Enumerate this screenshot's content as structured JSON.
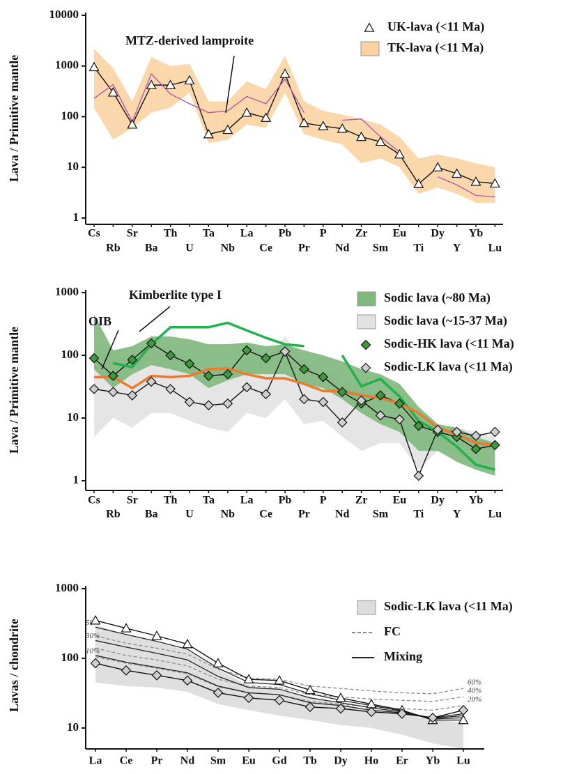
{
  "chart_data": [
    {
      "type": "line",
      "log_y": true,
      "y_label": "Lava / Primitive mantle",
      "categories": [
        "Cs",
        "Rb",
        "Sr",
        "Ba",
        "Th",
        "U",
        "Ta",
        "Nb",
        "La",
        "Ce",
        "Pb",
        "Pr",
        "P",
        "Nd",
        "Zr",
        "Sm",
        "Eu",
        "Ti",
        "Dy",
        "Y",
        "Yb",
        "Lu"
      ],
      "ylim": [
        0.75,
        10000
      ],
      "yticks": [
        1,
        10,
        100,
        1000,
        10000
      ],
      "series": [
        {
          "name": "UK-lava (<11 Ma)",
          "kind": "line",
          "marker": "triangle",
          "color": "#111",
          "marker_color": "#ffffff",
          "values": [
            950,
            300,
            70,
            420,
            420,
            520,
            45,
            55,
            120,
            95,
            700,
            75,
            65,
            58,
            40,
            32,
            18,
            4.7,
            10,
            7.5,
            5.2,
            4.8
          ]
        },
        {
          "name": "TK-lava (<11 Ma)",
          "kind": "band",
          "color": "#fbd3a3",
          "upper": [
            2200,
            900,
            200,
            1500,
            1000,
            1100,
            200,
            200,
            500,
            350,
            1600,
            200,
            130,
            110,
            90,
            70,
            40,
            15,
            18,
            15,
            12,
            10
          ],
          "lower": [
            150,
            35,
            60,
            120,
            150,
            300,
            30,
            35,
            70,
            60,
            300,
            45,
            35,
            28,
            12,
            15,
            10,
            3,
            4,
            3,
            2,
            2
          ]
        },
        {
          "name": "MTZ-derived lamproite",
          "kind": "line",
          "color": "#b05aa8",
          "legend": false,
          "values": [
            230,
            430,
            80,
            700,
            280,
            180,
            120,
            130,
            250,
            180,
            550,
            120,
            null,
            85,
            90,
            40,
            20,
            null,
            6.5,
            4.5,
            2.8,
            2.6
          ]
        }
      ]
    },
    {
      "type": "line",
      "log_y": true,
      "y_label": "Lava / Primitive mantle",
      "categories": [
        "Cs",
        "Rb",
        "Sr",
        "Ba",
        "Th",
        "U",
        "Ta",
        "Nb",
        "La",
        "Ce",
        "Pb",
        "Pr",
        "P",
        "Nd",
        "Zr",
        "Sm",
        "Eu",
        "Ti",
        "Dy",
        "Y",
        "Yb",
        "Lu"
      ],
      "ylim": [
        0.7,
        1000
      ],
      "yticks": [
        1,
        10,
        100,
        1000
      ],
      "series": [
        {
          "name": "Sodic lava (~80 Ma)",
          "kind": "band",
          "color": "#7fb77c",
          "upper": [
            450,
            120,
            140,
            200,
            200,
            180,
            150,
            150,
            160,
            140,
            150,
            120,
            100,
            80,
            60,
            50,
            35,
            15,
            8,
            7,
            5,
            4
          ],
          "lower": [
            60,
            30,
            50,
            70,
            60,
            50,
            30,
            40,
            50,
            50,
            50,
            35,
            30,
            20,
            12,
            8,
            6,
            3,
            3,
            2,
            1.5,
            1.2
          ]
        },
        {
          "name": "Sodic lava (~15-37 Ma)",
          "kind": "band",
          "color": "#e2e2e2",
          "upper": [
            120,
            100,
            90,
            120,
            110,
            100,
            60,
            60,
            90,
            80,
            200,
            80,
            60,
            40,
            30,
            25,
            20,
            10,
            7,
            7,
            6,
            5
          ],
          "lower": [
            5,
            10,
            7,
            12,
            12,
            9,
            7,
            6,
            12,
            10,
            20,
            8,
            9,
            5,
            3,
            4,
            4,
            1.5,
            3,
            3,
            3,
            3
          ]
        },
        {
          "name": "Sodic-HK lava (<11 Ma)",
          "kind": "line",
          "marker": "diamond",
          "color": "#111",
          "marker_color": "#3f9a3c",
          "values": [
            90,
            47,
            85,
            155,
            100,
            73,
            47,
            50,
            120,
            90,
            115,
            60,
            45,
            26,
            17,
            23,
            17,
            7.5,
            6,
            5,
            3.2,
            3.7
          ]
        },
        {
          "name": "Sodic-LK lava (<11 Ma)",
          "kind": "line",
          "marker": "diamond",
          "color": "#111",
          "marker_color": "#cfcfcf",
          "values": [
            29,
            26,
            23,
            38,
            29,
            18,
            16,
            17,
            31,
            24,
            115,
            20,
            18,
            8.5,
            19,
            11,
            9.5,
            1.2,
            6.5,
            6,
            5.2,
            6
          ]
        },
        {
          "name": "Kimberlite type I",
          "kind": "line",
          "color": "#22b14c",
          "legend": false,
          "width": 3.5,
          "values": [
            null,
            75,
            65,
            150,
            280,
            280,
            280,
            330,
            250,
            190,
            150,
            140,
            null,
            100,
            32,
            42,
            22,
            9,
            6,
            3.5,
            1.8,
            1.5
          ]
        },
        {
          "name": "OIB",
          "kind": "line",
          "color": "#ec7a2e",
          "legend": false,
          "width": 3.5,
          "values": [
            45,
            45,
            30,
            47,
            45,
            47,
            60,
            62,
            50,
            43,
            43,
            35,
            27,
            27,
            23,
            21,
            17,
            12,
            7,
            5.5,
            4,
            3.7
          ]
        }
      ]
    },
    {
      "type": "line",
      "log_y": true,
      "y_label": "Lavas / chondrite",
      "categories": [
        "La",
        "Ce",
        "Pr",
        "Nd",
        "Sm",
        "Eu",
        "Gd",
        "Tb",
        "Dy",
        "Ho",
        "Er",
        "Yb",
        "Lu"
      ],
      "ylim": [
        5,
        1000
      ],
      "yticks": [
        10,
        100,
        1000
      ],
      "series": [
        {
          "name": "Sodic-LK lava (<11 Ma)",
          "kind": "band",
          "color": "#dcdcdc",
          "upper": [
            300,
            220,
            170,
            130,
            70,
            40,
            35,
            28,
            22,
            18,
            16,
            13,
            12
          ],
          "lower": [
            45,
            40,
            38,
            33,
            22,
            18,
            15,
            13,
            11,
            10,
            8,
            6,
            5
          ]
        },
        {
          "name": "FC",
          "kind": "lines",
          "color": "#8a8a8a",
          "dash": true,
          "label_side": "right",
          "lines": [
            {
              "label": "60%",
              "values": [
                210,
                165,
                140,
                115,
                70,
                52,
                50,
                40,
                37,
                34,
                32,
                31,
                37
              ]
            },
            {
              "label": "40%",
              "values": [
                140,
                110,
                95,
                78,
                50,
                40,
                38,
                30,
                28,
                26,
                25,
                24,
                28
              ]
            },
            {
              "label": "20%",
              "values": [
                105,
                85,
                72,
                60,
                39,
                32,
                30,
                24,
                22,
                20,
                19,
                18,
                21
              ]
            }
          ]
        },
        {
          "name": "Mixing",
          "kind": "lines",
          "color": "#222",
          "label_side": "left",
          "lines": [
            {
              "label": "50%",
              "values": [
                280,
                220,
                175,
                135,
                72,
                45,
                42,
                31,
                25,
                21,
                17.5,
                13.5,
                14
              ]
            },
            {
              "label": "30%",
              "values": [
                180,
                145,
                118,
                95,
                55,
                38,
                36,
                27,
                23,
                19.5,
                17,
                13.8,
                15
              ]
            },
            {
              "label": "10%",
              "values": [
                110,
                88,
                74,
                62,
                40,
                32,
                30,
                23,
                21,
                18,
                16.5,
                14,
                16
              ]
            }
          ]
        },
        {
          "kind": "line",
          "marker": "triangle",
          "color": "#111",
          "marker_color": "#ffffff",
          "legend": false,
          "values": [
            350,
            270,
            210,
            160,
            85,
            50,
            48,
            35,
            27,
            22,
            18,
            13,
            13
          ]
        },
        {
          "kind": "line",
          "marker": "diamond",
          "color": "#111",
          "marker_color": "#d0d0d0",
          "legend": false,
          "values": [
            85,
            67,
            57,
            48,
            32,
            27,
            25,
            20,
            19,
            17,
            16,
            14,
            18
          ]
        }
      ]
    }
  ]
}
